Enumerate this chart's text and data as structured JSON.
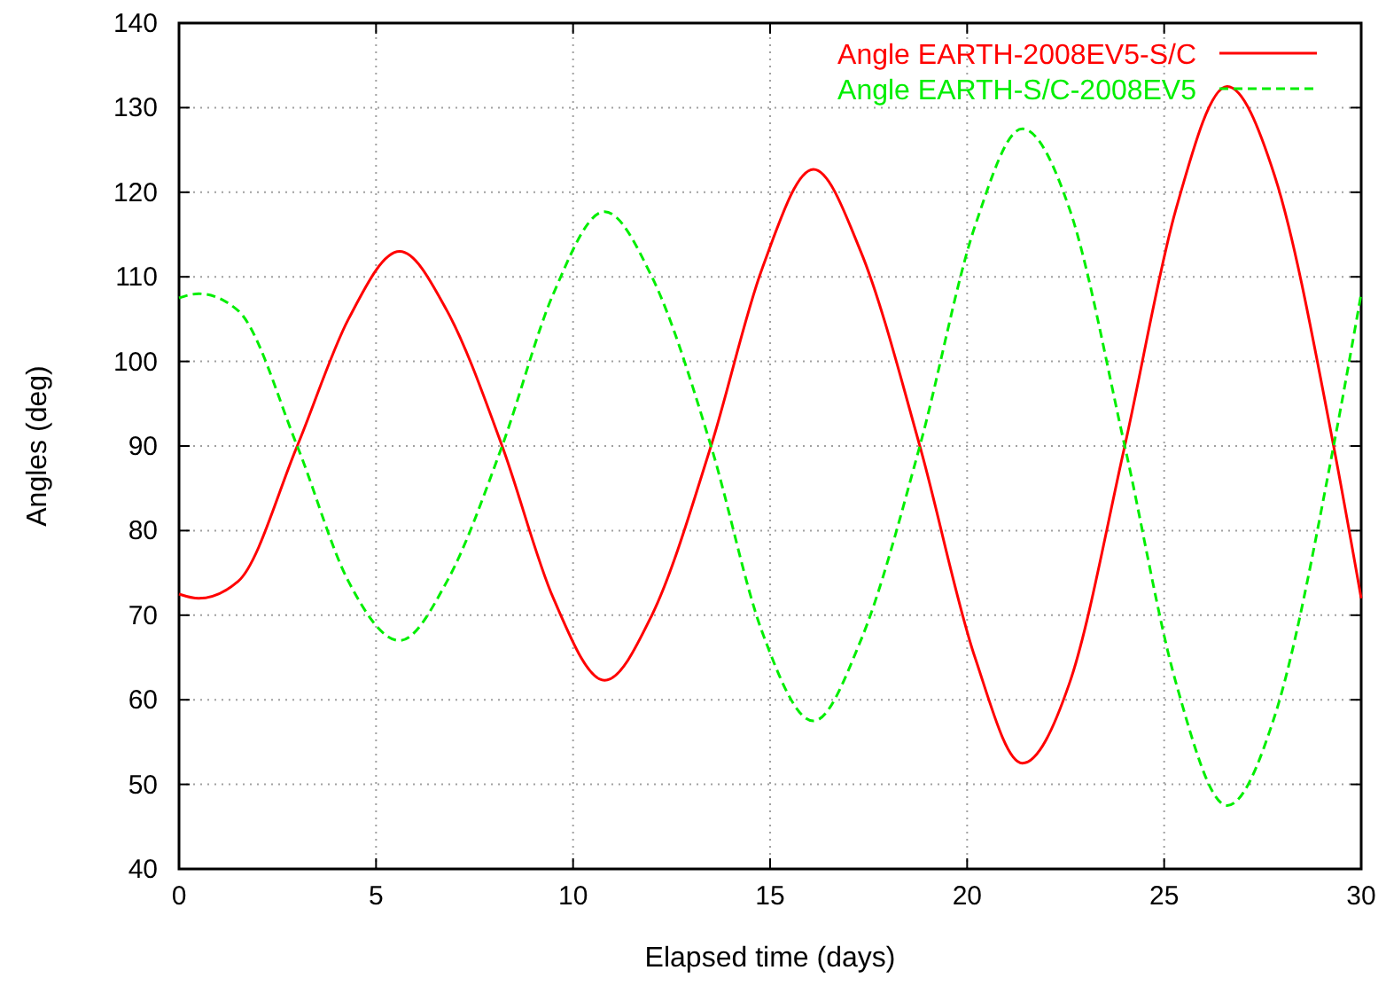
{
  "chart_data": {
    "type": "line",
    "xlabel": "Elapsed time (days)",
    "ylabel": "Angles (deg)",
    "xlim": [
      0,
      30
    ],
    "xticks": [
      0,
      5,
      10,
      15,
      20,
      25,
      30
    ],
    "ylim": [
      40,
      140
    ],
    "yticks": [
      40,
      50,
      60,
      70,
      80,
      90,
      100,
      110,
      120,
      130,
      140
    ],
    "grid": true,
    "legend": "top right",
    "series": [
      {
        "name": "Angle EARTH-2008EV5-S/C",
        "color": "#ff0000",
        "line_style": "solid",
        "x": [
          0,
          0.5,
          1.5,
          3,
          4.3,
          5.6,
          6.8,
          8.2,
          9.5,
          10.8,
          12,
          13.5,
          14.8,
          16.1,
          17.3,
          18.8,
          20.2,
          21.4,
          22.6,
          24,
          25.3,
          26.6,
          27.8,
          29.3,
          30
        ],
        "values": [
          72.5,
          72,
          74,
          90,
          105,
          113,
          106,
          90,
          72,
          62.3,
          70,
          90,
          111,
          122.7,
          113,
          90,
          65,
          52.5,
          62,
          90,
          118,
          132.5,
          122,
          90,
          72
        ]
      },
      {
        "name": "Angle EARTH-S/C-2008EV5",
        "color": "#00ee00",
        "line_style": "dashed",
        "x": [
          0,
          0.5,
          1.5,
          3,
          4.3,
          5.6,
          6.8,
          8.2,
          9.5,
          10.8,
          12,
          13.5,
          14.8,
          16.1,
          17.3,
          18.8,
          20.2,
          21.4,
          22.6,
          24,
          25.3,
          26.6,
          27.8,
          29.3,
          30
        ],
        "values": [
          107.5,
          108,
          106,
          90,
          74,
          67,
          74,
          90,
          108,
          117.7,
          110,
          90,
          68,
          57.5,
          67,
          90,
          116,
          127.5,
          118,
          90,
          62,
          47.5,
          58,
          90,
          108
        ]
      }
    ]
  }
}
